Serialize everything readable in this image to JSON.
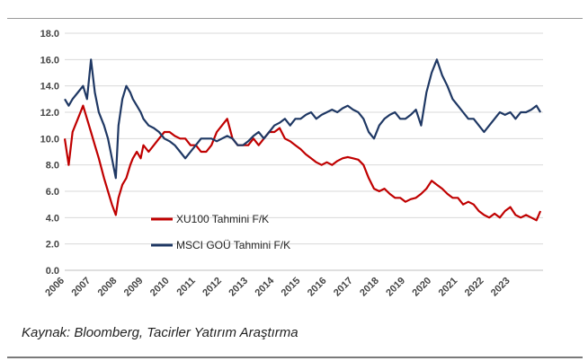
{
  "source_note": "Kaynak: Bloomberg, Tacirler Yatırım Araştırma",
  "chart_data": {
    "type": "line",
    "title": "",
    "xlabel": "",
    "ylabel": "",
    "ylim": [
      0,
      18
    ],
    "yticks": [
      "0.0",
      "2.0",
      "4.0",
      "6.0",
      "8.0",
      "10.0",
      "12.0",
      "14.0",
      "16.0",
      "18.0"
    ],
    "xlim": [
      2006,
      2024.25
    ],
    "xticks": [
      "2006",
      "2007",
      "2008",
      "2009",
      "2010",
      "2011",
      "2012",
      "2013",
      "2014",
      "2015",
      "2016",
      "2017",
      "2018",
      "2019",
      "2020",
      "2021",
      "2022",
      "2023"
    ],
    "grid": "horizontal",
    "legend_position": "lower-left, inside plot",
    "series": [
      {
        "name": "XU100 Tahmini F/K",
        "color": "#c00000",
        "x": [
          2006.0,
          2006.15,
          2006.3,
          2006.5,
          2006.7,
          2006.85,
          2007.0,
          2007.15,
          2007.3,
          2007.5,
          2007.65,
          2007.8,
          2007.95,
          2008.05,
          2008.2,
          2008.35,
          2008.5,
          2008.6,
          2008.75,
          2008.9,
          2009.0,
          2009.2,
          2009.4,
          2009.6,
          2009.8,
          2010.0,
          2010.2,
          2010.4,
          2010.6,
          2010.8,
          2011.0,
          2011.2,
          2011.4,
          2011.6,
          2011.8,
          2012.0,
          2012.2,
          2012.4,
          2012.6,
          2012.8,
          2013.0,
          2013.2,
          2013.4,
          2013.6,
          2013.8,
          2014.0,
          2014.2,
          2014.4,
          2014.6,
          2014.8,
          2015.0,
          2015.2,
          2015.4,
          2015.6,
          2015.8,
          2016.0,
          2016.2,
          2016.4,
          2016.6,
          2016.8,
          2017.0,
          2017.2,
          2017.4,
          2017.6,
          2017.8,
          2018.0,
          2018.2,
          2018.4,
          2018.6,
          2018.8,
          2019.0,
          2019.2,
          2019.4,
          2019.6,
          2019.8,
          2020.0,
          2020.2,
          2020.4,
          2020.6,
          2020.8,
          2021.0,
          2021.2,
          2021.4,
          2021.6,
          2021.8,
          2022.0,
          2022.2,
          2022.4,
          2022.6,
          2022.8,
          2023.0,
          2023.2,
          2023.4,
          2023.6,
          2023.8,
          2024.0,
          2024.15
        ],
        "y": [
          10.0,
          8.0,
          10.5,
          11.5,
          12.5,
          11.5,
          10.5,
          9.5,
          8.5,
          7.0,
          6.0,
          5.0,
          4.2,
          5.5,
          6.5,
          7.0,
          8.0,
          8.5,
          9.0,
          8.5,
          9.5,
          9.0,
          9.5,
          10.0,
          10.5,
          10.5,
          10.2,
          10.0,
          10.0,
          9.5,
          9.5,
          9.0,
          9.0,
          9.5,
          10.5,
          11.0,
          11.5,
          10.0,
          9.5,
          9.5,
          9.5,
          10.0,
          9.5,
          10.0,
          10.5,
          10.5,
          10.8,
          10.0,
          9.8,
          9.5,
          9.2,
          8.8,
          8.5,
          8.2,
          8.0,
          8.2,
          8.0,
          8.3,
          8.5,
          8.6,
          8.5,
          8.4,
          8.0,
          7.0,
          6.2,
          6.0,
          6.2,
          5.8,
          5.5,
          5.5,
          5.2,
          5.4,
          5.5,
          5.8,
          6.2,
          6.8,
          6.5,
          6.2,
          5.8,
          5.5,
          5.5,
          5.0,
          5.2,
          5.0,
          4.5,
          4.2,
          4.0,
          4.3,
          4.0,
          4.5,
          4.8,
          4.2,
          4.0,
          4.2,
          4.0,
          3.8,
          4.5
        ]
      },
      {
        "name": "MSCI GOÜ Tahmini F/K",
        "color": "#1f3864",
        "x": [
          2006.0,
          2006.15,
          2006.3,
          2006.5,
          2006.7,
          2006.85,
          2007.0,
          2007.15,
          2007.3,
          2007.5,
          2007.65,
          2007.8,
          2007.95,
          2008.05,
          2008.2,
          2008.35,
          2008.5,
          2008.6,
          2008.75,
          2008.9,
          2009.0,
          2009.2,
          2009.4,
          2009.6,
          2009.8,
          2010.0,
          2010.2,
          2010.4,
          2010.6,
          2010.8,
          2011.0,
          2011.2,
          2011.4,
          2011.6,
          2011.8,
          2012.0,
          2012.2,
          2012.4,
          2012.6,
          2012.8,
          2013.0,
          2013.2,
          2013.4,
          2013.6,
          2013.8,
          2014.0,
          2014.2,
          2014.4,
          2014.6,
          2014.8,
          2015.0,
          2015.2,
          2015.4,
          2015.6,
          2015.8,
          2016.0,
          2016.2,
          2016.4,
          2016.6,
          2016.8,
          2017.0,
          2017.2,
          2017.4,
          2017.6,
          2017.8,
          2018.0,
          2018.2,
          2018.4,
          2018.6,
          2018.8,
          2019.0,
          2019.2,
          2019.4,
          2019.6,
          2019.8,
          2020.0,
          2020.2,
          2020.4,
          2020.6,
          2020.8,
          2021.0,
          2021.2,
          2021.4,
          2021.6,
          2021.8,
          2022.0,
          2022.2,
          2022.4,
          2022.6,
          2022.8,
          2023.0,
          2023.2,
          2023.4,
          2023.6,
          2023.8,
          2024.0,
          2024.15
        ],
        "y": [
          13.0,
          12.5,
          13.0,
          13.5,
          14.0,
          13.0,
          16.0,
          13.5,
          12.0,
          11.0,
          10.0,
          8.5,
          7.0,
          11.0,
          13.0,
          14.0,
          13.5,
          13.0,
          12.5,
          12.0,
          11.5,
          11.0,
          10.8,
          10.5,
          10.0,
          9.8,
          9.5,
          9.0,
          8.5,
          9.0,
          9.5,
          10.0,
          10.0,
          10.0,
          9.8,
          10.0,
          10.2,
          10.0,
          9.5,
          9.5,
          9.8,
          10.2,
          10.5,
          10.0,
          10.5,
          11.0,
          11.2,
          11.5,
          11.0,
          11.5,
          11.5,
          11.8,
          12.0,
          11.5,
          11.8,
          12.0,
          12.2,
          12.0,
          12.3,
          12.5,
          12.2,
          12.0,
          11.5,
          10.5,
          10.0,
          11.0,
          11.5,
          11.8,
          12.0,
          11.5,
          11.5,
          11.8,
          12.2,
          11.0,
          13.5,
          15.0,
          16.0,
          14.8,
          14.0,
          13.0,
          12.5,
          12.0,
          11.5,
          11.5,
          11.0,
          10.5,
          11.0,
          11.5,
          12.0,
          11.8,
          12.0,
          11.5,
          12.0,
          12.0,
          12.2,
          12.5,
          12.0
        ]
      }
    ]
  }
}
